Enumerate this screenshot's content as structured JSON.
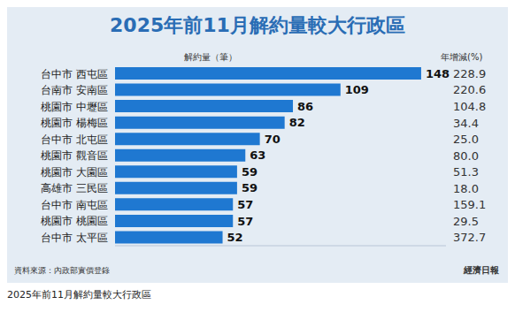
{
  "chart_data": {
    "type": "bar",
    "orientation": "horizontal",
    "title": "2025年前11月解約量較大行政區",
    "xlabel": "解約量（筆）",
    "categories": [
      "台中市 西屯區",
      "台南市 安南區",
      "桃園市 中壢區",
      "桃園市 楊梅區",
      "台中市 北屯區",
      "桃園市 觀音區",
      "桃園市 大園區",
      "高雄市 三民區",
      "台中市 南屯區",
      "桃園市 桃園區",
      "台中市 太平區"
    ],
    "values": [
      148,
      109,
      86,
      82,
      70,
      63,
      59,
      59,
      57,
      57,
      52
    ],
    "color": "#1f78d1",
    "data_labels": true,
    "xlim": [
      0,
      160
    ],
    "tick_labels": "y",
    "grid": false,
    "growth": {
      "name": "年增減(%)",
      "values": [
        228.9,
        220.6,
        104.8,
        34.4,
        25.0,
        80.0,
        51.3,
        18.0,
        159.1,
        29.5,
        372.7
      ],
      "value_labels": [
        "228.9",
        "220.6",
        "104.8",
        "34.4",
        "25.0",
        "80.0",
        "51.3",
        "18.0",
        "159.1",
        "29.5",
        "372.7"
      ]
    },
    "source": "資料來源：內政部實價登錄",
    "brand": "經濟日報",
    "caption": "2025年前11月解約量較大行政區"
  }
}
